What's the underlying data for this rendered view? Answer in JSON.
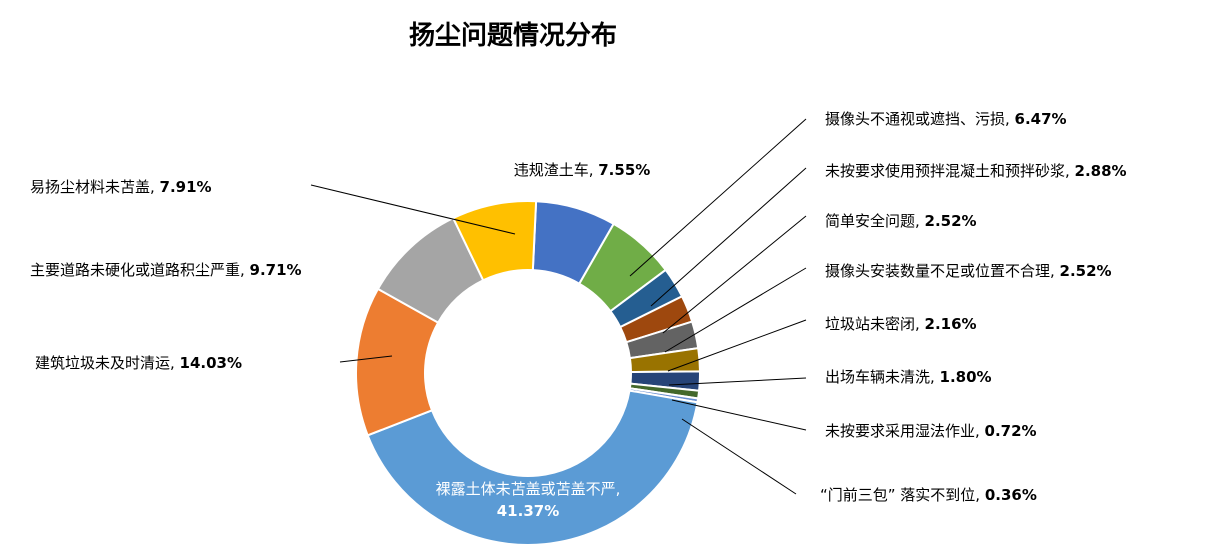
{
  "chart_data": {
    "type": "pie",
    "title": "扬尘问题情况分布",
    "donut": true,
    "start_angle_deg": 2.7,
    "slices": [
      {
        "name": "违规渣土车",
        "value": 7.55,
        "percent_label": "7.55%",
        "color": "#4472C4"
      },
      {
        "name": "摄像头不通视或遮挡、污损",
        "value": 6.47,
        "percent_label": "6.47%",
        "color": "#70AD47"
      },
      {
        "name": "未按要求使用预拌混凝土和预拌砂浆",
        "value": 2.88,
        "percent_label": "2.88%",
        "color": "#255E91"
      },
      {
        "name": "简单安全问题",
        "value": 2.52,
        "percent_label": "2.52%",
        "color": "#9E480E"
      },
      {
        "name": "摄像头安装数量不足或位置不合理",
        "value": 2.52,
        "percent_label": "2.52%",
        "color": "#636363"
      },
      {
        "name": "垃圾站未密闭",
        "value": 2.16,
        "percent_label": "2.16%",
        "color": "#997300"
      },
      {
        "name": "出场车辆未清洗",
        "value": 1.8,
        "percent_label": "1.80%",
        "color": "#264478"
      },
      {
        "name": "未按要求采用湿法作业",
        "value": 0.72,
        "percent_label": "0.72%",
        "color": "#43682B"
      },
      {
        "name": "“门前三包” 落实不到位",
        "value": 0.36,
        "percent_label": "0.36%",
        "color": "#698ED0"
      },
      {
        "name": "裸露土体未苫盖或苫盖不严",
        "value": 41.37,
        "percent_label": "41.37%",
        "color": "#5B9BD5"
      },
      {
        "name": "建筑垃圾未及时清运",
        "value": 14.03,
        "percent_label": "14.03%",
        "color": "#ED7D31"
      },
      {
        "name": "主要道路未硬化或道路积尘严重",
        "value": 9.71,
        "percent_label": "9.71%",
        "color": "#A5A5A5"
      },
      {
        "name": "易扬尘材料未苫盖",
        "value": 7.91,
        "percent_label": "7.91%",
        "color": "#FFC000"
      }
    ]
  }
}
